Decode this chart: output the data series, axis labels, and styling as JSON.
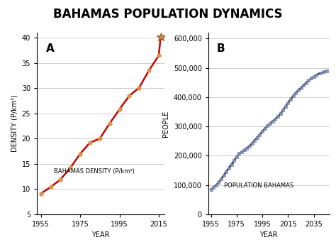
{
  "title": "BAHAMAS POPULATION DYNAMICS",
  "panel_a": {
    "label": "A",
    "xlabel": "YEAR",
    "ylabel": "DENSITY (P/km²)",
    "inner_label": "BAHAMAS DENSITY (P/km²)",
    "years": [
      1955,
      1960,
      1965,
      1970,
      1975,
      1980,
      1985,
      1990,
      1995,
      2000,
      2005,
      2010,
      2015,
      2016
    ],
    "density": [
      9.1,
      10.4,
      11.9,
      14.2,
      17.0,
      19.2,
      20.0,
      23.0,
      25.8,
      28.5,
      30.1,
      33.5,
      36.5,
      40.2
    ],
    "line_color": "#cc0000",
    "marker_color": "#d4964a",
    "marker_style": "o",
    "marker_size": 3.5,
    "ylim": [
      5,
      41
    ],
    "yticks": [
      5,
      10,
      15,
      20,
      25,
      30,
      35,
      40
    ],
    "xlim": [
      1953,
      2018
    ],
    "xticks": [
      1955,
      1975,
      1995,
      2015
    ]
  },
  "panel_b": {
    "label": "B",
    "xlabel": "YEAR",
    "ylabel": "PEOPLE",
    "inner_label": "POPULATION BAHAMAS",
    "years": [
      1955,
      1957,
      1959,
      1961,
      1963,
      1965,
      1967,
      1969,
      1971,
      1973,
      1975,
      1977,
      1979,
      1981,
      1983,
      1985,
      1987,
      1989,
      1991,
      1993,
      1995,
      1997,
      1999,
      2001,
      2003,
      2005,
      2007,
      2009,
      2011,
      2013,
      2015,
      2017,
      2019,
      2021,
      2023,
      2025,
      2027,
      2029,
      2031,
      2033,
      2035,
      2037,
      2040,
      2043,
      2045
    ],
    "population": [
      84000,
      91000,
      99000,
      108000,
      120000,
      133000,
      146000,
      158000,
      170000,
      183000,
      196000,
      207000,
      213000,
      219000,
      226000,
      233000,
      242000,
      252000,
      262000,
      272000,
      282000,
      293000,
      302000,
      310000,
      318000,
      325000,
      333000,
      343000,
      355000,
      368000,
      381000,
      393000,
      404000,
      414000,
      424000,
      432000,
      440000,
      449000,
      457000,
      464000,
      470000,
      476000,
      482000,
      487000,
      490000
    ],
    "line_color": "#1a1a2e",
    "marker_color": "#8899bb",
    "marker_style": "s",
    "marker_size": 2.5,
    "ylim": [
      0,
      620000
    ],
    "yticks": [
      0,
      100000,
      200000,
      300000,
      400000,
      500000,
      600000
    ],
    "xlim": [
      1953,
      2047
    ],
    "xticks": [
      1955,
      1975,
      1995,
      2015,
      2035
    ]
  },
  "bg_color": "#ffffff",
  "title_fontsize": 12,
  "label_fontsize": 7,
  "tick_fontsize": 7,
  "grid_color": "#c8c8c8"
}
